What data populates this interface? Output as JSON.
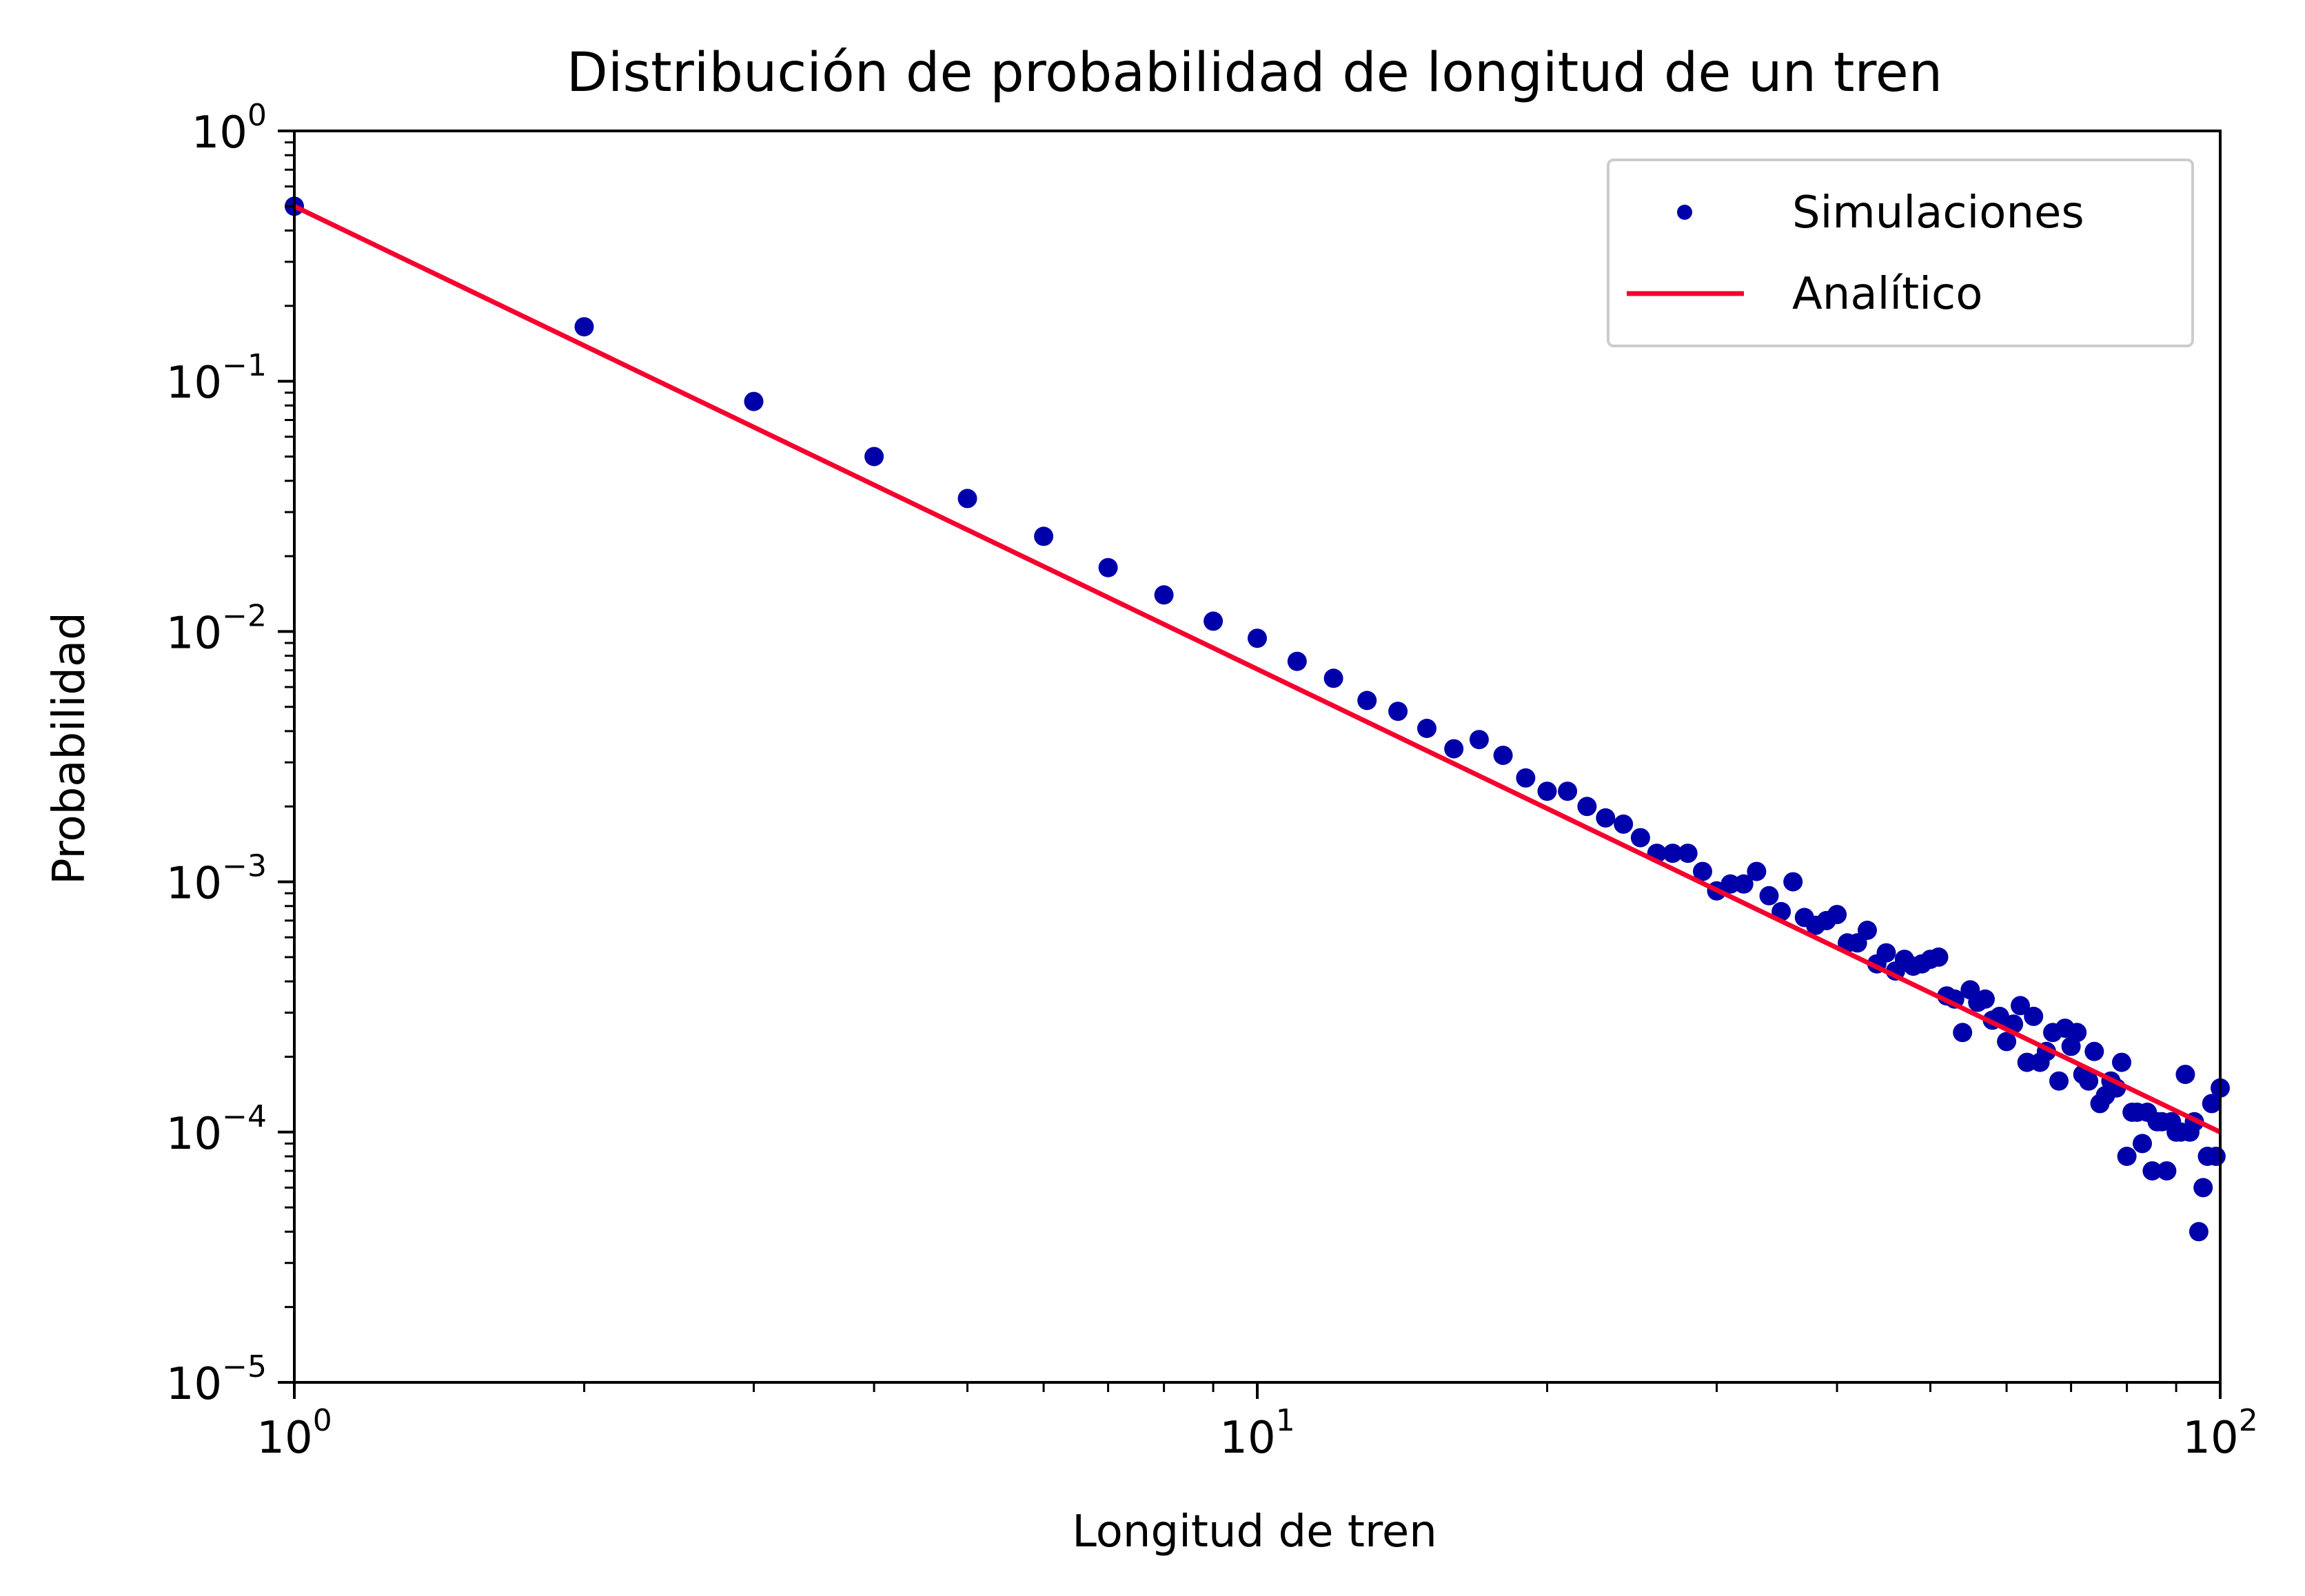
{
  "chart_data": {
    "type": "scatter",
    "title": "Distribución de probabilidad de longitud de un tren",
    "xlabel": "Longitud de tren",
    "ylabel": "Probabilidad",
    "xscale": "log",
    "yscale": "log",
    "xlim": [
      1,
      100
    ],
    "ylim": [
      1e-05,
      1
    ],
    "grid": false,
    "legend_position": "top-right",
    "x_ticks": [
      {
        "base": "10",
        "exp": "0"
      },
      {
        "base": "10",
        "exp": "1"
      },
      {
        "base": "10",
        "exp": "2"
      }
    ],
    "y_ticks": [
      {
        "base": "10",
        "exp": "0"
      },
      {
        "base": "10",
        "exp": "−1"
      },
      {
        "base": "10",
        "exp": "−2"
      },
      {
        "base": "10",
        "exp": "−3"
      },
      {
        "base": "10",
        "exp": "−4"
      },
      {
        "base": "10",
        "exp": "−5"
      }
    ],
    "series": [
      {
        "name": "Simulaciones",
        "kind": "scatter",
        "color": "#0000AA",
        "points": [
          [
            1,
            0.5
          ],
          [
            2,
            0.165
          ],
          [
            3,
            0.083
          ],
          [
            4,
            0.05
          ],
          [
            5,
            0.034
          ],
          [
            6,
            0.024
          ],
          [
            7,
            0.018
          ],
          [
            8,
            0.014
          ],
          [
            9,
            0.011
          ],
          [
            10,
            0.0094
          ],
          [
            11,
            0.0076
          ],
          [
            12,
            0.0065
          ],
          [
            13,
            0.0053
          ],
          [
            14,
            0.0048
          ],
          [
            15,
            0.0041
          ],
          [
            16,
            0.0034
          ],
          [
            17,
            0.0037
          ],
          [
            18,
            0.0032
          ],
          [
            19,
            0.0026
          ],
          [
            20,
            0.0023
          ],
          [
            21,
            0.0023
          ],
          [
            22,
            0.002
          ],
          [
            23,
            0.0018
          ],
          [
            24,
            0.0017
          ],
          [
            25,
            0.0015
          ],
          [
            26,
            0.0013
          ],
          [
            27,
            0.0013
          ],
          [
            28,
            0.0013
          ],
          [
            29,
            0.0011
          ],
          [
            30,
            0.00092
          ],
          [
            31,
            0.00098
          ],
          [
            32,
            0.00098
          ],
          [
            33,
            0.0011
          ],
          [
            34,
            0.00088
          ],
          [
            35,
            0.00076
          ],
          [
            36,
            0.001
          ],
          [
            37,
            0.00072
          ],
          [
            38,
            0.00067
          ],
          [
            39,
            0.0007
          ],
          [
            40,
            0.00074
          ],
          [
            41,
            0.00057
          ],
          [
            42,
            0.00057
          ],
          [
            43,
            0.00064
          ],
          [
            44,
            0.00047
          ],
          [
            45,
            0.00052
          ],
          [
            46,
            0.00044
          ],
          [
            47,
            0.00049
          ],
          [
            48,
            0.00046
          ],
          [
            49,
            0.00047
          ],
          [
            50,
            0.00049
          ],
          [
            51,
            0.0005
          ],
          [
            52,
            0.00035
          ],
          [
            53,
            0.00034
          ],
          [
            54,
            0.00025
          ],
          [
            55,
            0.00037
          ],
          [
            56,
            0.00033
          ],
          [
            57,
            0.00034
          ],
          [
            58,
            0.00028
          ],
          [
            59,
            0.00029
          ],
          [
            60,
            0.00023
          ],
          [
            61,
            0.00027
          ],
          [
            62,
            0.00032
          ],
          [
            63,
            0.00019
          ],
          [
            64,
            0.00029
          ],
          [
            65,
            0.00019
          ],
          [
            66,
            0.00021
          ],
          [
            67,
            0.00025
          ],
          [
            68,
            0.00016
          ],
          [
            69,
            0.00026
          ],
          [
            70,
            0.00022
          ],
          [
            71,
            0.00025
          ],
          [
            72,
            0.00017
          ],
          [
            73,
            0.00016
          ],
          [
            74,
            0.00021
          ],
          [
            75,
            0.00013
          ],
          [
            76,
            0.00014
          ],
          [
            77,
            0.00016
          ],
          [
            78,
            0.00015
          ],
          [
            79,
            0.00019
          ],
          [
            80,
            8e-05
          ],
          [
            81,
            0.00012
          ],
          [
            82,
            0.00012
          ],
          [
            83,
            9e-05
          ],
          [
            84,
            0.00012
          ],
          [
            85,
            7e-05
          ],
          [
            86,
            0.00011
          ],
          [
            87,
            0.00011
          ],
          [
            88,
            7e-05
          ],
          [
            89,
            0.00011
          ],
          [
            90,
            0.0001
          ],
          [
            91,
            0.0001
          ],
          [
            92,
            0.00017
          ],
          [
            93,
            0.0001
          ],
          [
            94,
            0.00011
          ],
          [
            95,
            4e-05
          ],
          [
            96,
            6e-05
          ],
          [
            97,
            8e-05
          ],
          [
            98,
            0.00013
          ],
          [
            99,
            8e-05
          ],
          [
            100,
            0.00015
          ]
        ]
      },
      {
        "name": "Analítico",
        "kind": "line",
        "color": "#F5002E",
        "points": [
          [
            1,
            0.5
          ],
          [
            100,
            0.0001
          ]
        ]
      }
    ]
  }
}
